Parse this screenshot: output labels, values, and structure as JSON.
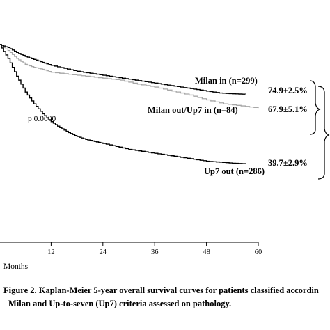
{
  "chart_data": {
    "type": "line",
    "xlabel": "Months",
    "x_ticks": [
      "12",
      "24",
      "36",
      "48",
      "60"
    ],
    "xlim": [
      0,
      60
    ],
    "ylim": [
      0,
      1
    ],
    "p_value": "p 0.0000",
    "series": [
      {
        "name": "Milan in (n=299)",
        "end_label": "74.9±2.5%",
        "color": "#000000",
        "x": [
          0,
          2,
          4,
          6,
          8,
          10,
          12,
          15,
          18,
          21,
          24,
          27,
          30,
          33,
          36,
          39,
          42,
          45,
          48,
          51,
          54,
          57
        ],
        "y": [
          1.0,
          0.985,
          0.96,
          0.94,
          0.925,
          0.91,
          0.895,
          0.88,
          0.865,
          0.855,
          0.845,
          0.835,
          0.825,
          0.815,
          0.805,
          0.795,
          0.785,
          0.775,
          0.765,
          0.755,
          0.751,
          0.749
        ]
      },
      {
        "name": "Milan out/Up7 in (n=84)",
        "end_label": "67.9±5.1%",
        "color": "#a6a6a6",
        "x": [
          0,
          2,
          4,
          6,
          8,
          10,
          12,
          16,
          20,
          24,
          28,
          32,
          36,
          40,
          44,
          48,
          52,
          56,
          60
        ],
        "y": [
          1.0,
          0.97,
          0.93,
          0.9,
          0.885,
          0.875,
          0.86,
          0.85,
          0.84,
          0.83,
          0.82,
          0.8,
          0.785,
          0.765,
          0.745,
          0.72,
          0.7,
          0.69,
          0.679
        ]
      },
      {
        "name": "Up7 out (n=286)",
        "end_label": "39.7±2.9%",
        "color": "#000000",
        "x": [
          0,
          2,
          4,
          6,
          8,
          10,
          12,
          14,
          16,
          18,
          20,
          22,
          24,
          27,
          30,
          33,
          36,
          39,
          42,
          45,
          48,
          51,
          54,
          57
        ],
        "y": [
          1.0,
          0.93,
          0.84,
          0.76,
          0.7,
          0.65,
          0.61,
          0.58,
          0.555,
          0.535,
          0.52,
          0.51,
          0.5,
          0.485,
          0.47,
          0.46,
          0.45,
          0.44,
          0.43,
          0.42,
          0.41,
          0.405,
          0.4,
          0.397
        ]
      }
    ]
  },
  "caption": {
    "line1": "Figure 2. Kaplan-Meier 5-year overall survival curves for patients classified accordin",
    "line2": "Milan and Up-to-seven (Up7) criteria assessed on pathology."
  }
}
